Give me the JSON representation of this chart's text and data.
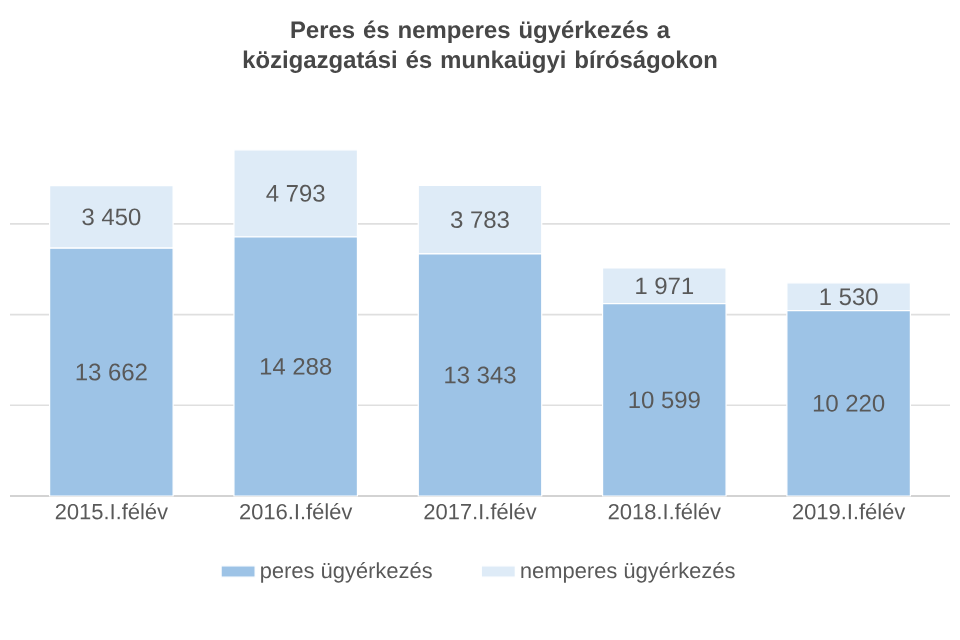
{
  "chart_data": {
    "type": "bar",
    "title": "Peres és nemperes ügyérkezés a közigazgatási és munkaügyi bíróságokon",
    "categories": [
      "2015.I.félév",
      "2016.I.félév",
      "2017.I.félév",
      "2018.I.félév",
      "2019.I.félév"
    ],
    "series": [
      {
        "name": "peres ügyérkezés",
        "color": "#9dc3e6",
        "values": [
          13662,
          14288,
          13343,
          10599,
          10220
        ],
        "value_labels": [
          "13 662",
          "14 288",
          "13 343",
          "10 599",
          "10 220"
        ]
      },
      {
        "name": "nemperes ügyérkezés",
        "color": "#deebf7",
        "values": [
          3450,
          4793,
          3783,
          1971,
          1530
        ],
        "value_labels": [
          "3 450",
          "4 793",
          "3 783",
          "1 971",
          "1 530"
        ]
      }
    ],
    "stacked": true,
    "tick_labels": "x",
    "grid": "y",
    "legend": "bottom"
  }
}
